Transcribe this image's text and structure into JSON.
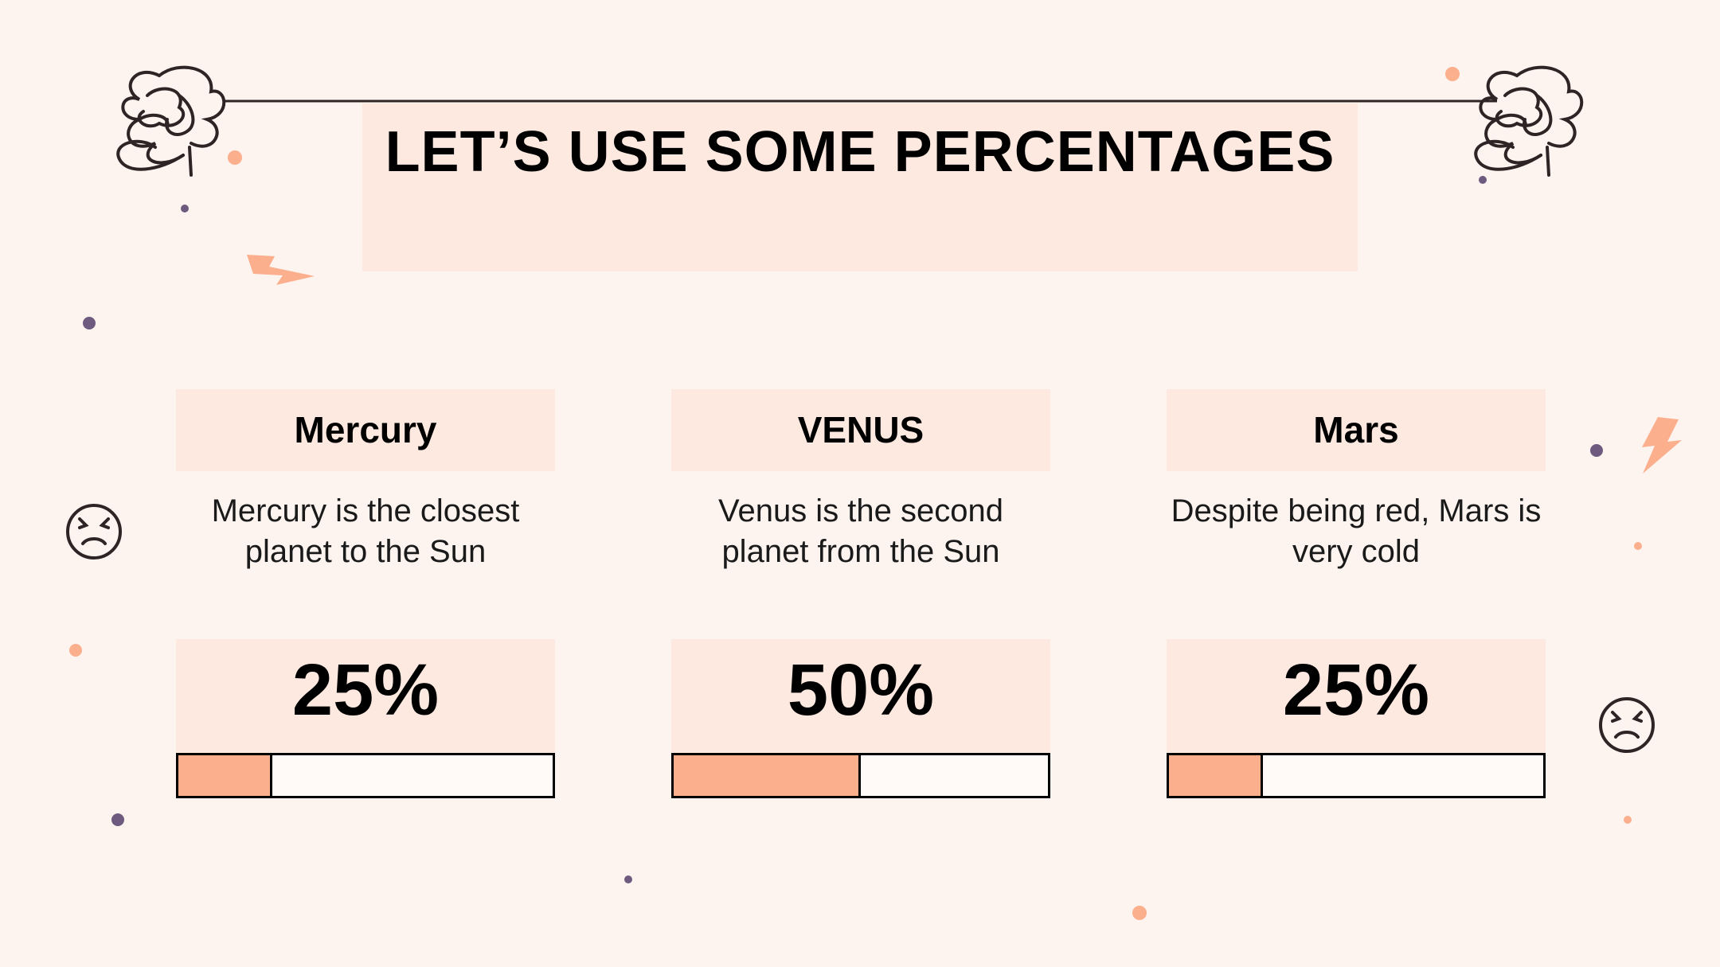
{
  "slide": {
    "title": "LET’S USE SOME PERCENTAGES"
  },
  "cards": [
    {
      "name": "Mercury",
      "description": "Mercury is the closest planet to the Sun",
      "percent_label": "25%",
      "progress": 0.25
    },
    {
      "name": "VENUS",
      "description": "Venus is the second planet from the Sun",
      "percent_label": "50%",
      "progress": 0.5
    },
    {
      "name": "Mars",
      "description": "Despite being red, Mars is very cold",
      "percent_label": "25%",
      "progress": 0.25
    }
  ],
  "colors": {
    "background": "#fdf3ef",
    "panel": "#fde9e0",
    "accent_orange": "#fcaf8c",
    "accent_purple": "#6e5a7e",
    "ink": "#2e2426"
  },
  "decorations": {
    "icons": [
      "scribble-flower-icon",
      "lightning-bolt-icon",
      "angry-face-icon"
    ]
  }
}
